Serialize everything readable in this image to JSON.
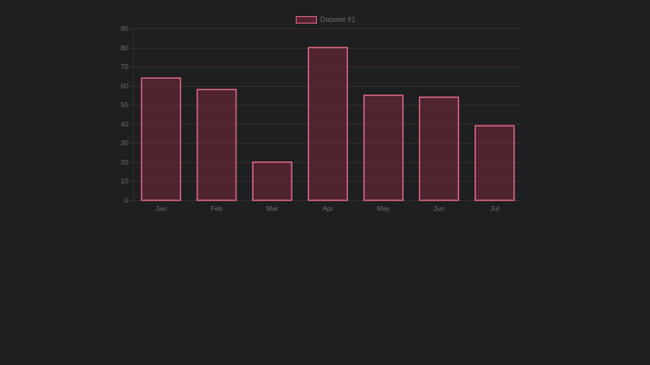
{
  "chart_data": {
    "type": "bar",
    "title": "",
    "categories": [
      "Jan",
      "Feb",
      "Mar",
      "Apr",
      "May",
      "Jun",
      "Jul"
    ],
    "series": [
      {
        "name": "Dataset #1",
        "values": [
          64,
          58,
          20,
          80,
          55,
          54,
          39
        ]
      }
    ],
    "xlabel": "",
    "ylabel": "",
    "ylim": [
      0,
      90
    ],
    "yticks": [
      0,
      10,
      20,
      30,
      40,
      50,
      60,
      70,
      80,
      90
    ],
    "grid": true,
    "legend_position": "top"
  },
  "legend": {
    "label": "Dataset #1"
  },
  "colors": {
    "background": "#1e1f20",
    "bar_border": "#e56a8a",
    "bar_fill": "rgba(120,40,60,0.55)",
    "grid": "#3a2a2e",
    "tick_text": "#6f6f6f"
  }
}
